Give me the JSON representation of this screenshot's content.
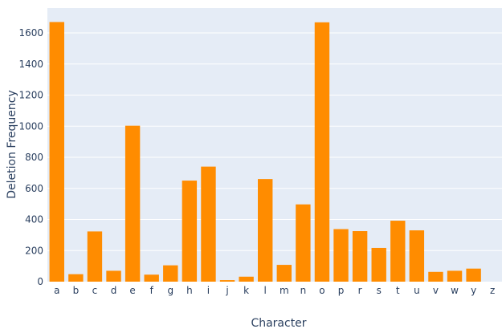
{
  "chart_data": {
    "type": "bar",
    "xlabel": "Character",
    "ylabel": "Deletion Frequency",
    "categories": [
      "a",
      "b",
      "c",
      "d",
      "e",
      "f",
      "g",
      "h",
      "i",
      "j",
      "k",
      "l",
      "m",
      "n",
      "o",
      "p",
      "r",
      "s",
      "t",
      "u",
      "v",
      "w",
      "y",
      "z"
    ],
    "values": [
      1670,
      48,
      323,
      70,
      1003,
      45,
      105,
      650,
      740,
      10,
      32,
      660,
      108,
      497,
      1668,
      338,
      325,
      217,
      392,
      330,
      63,
      70,
      84,
      0
    ],
    "ylim": [
      0,
      1760
    ],
    "yticks": [
      0,
      200,
      400,
      600,
      800,
      1000,
      1200,
      1400,
      1600
    ],
    "grid": true,
    "legend": "none",
    "colors": {
      "bar": "#ff8c00",
      "plot_bg": "#e5ecf6",
      "grid": "#ffffff",
      "text": "#2a3f5f"
    }
  }
}
